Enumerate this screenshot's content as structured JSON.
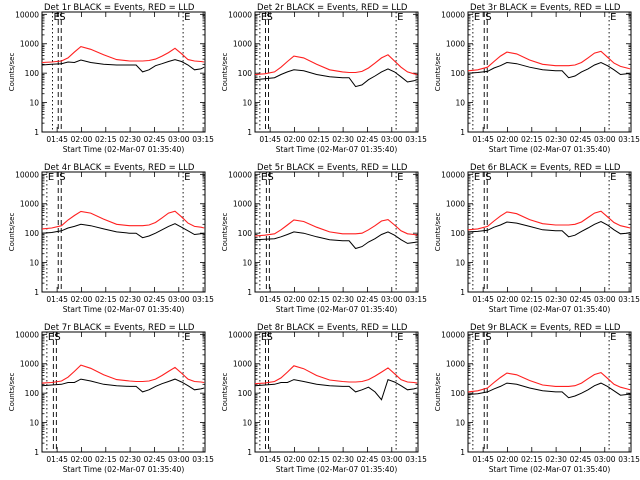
{
  "colors": {
    "events": "#000000",
    "lld": "#ff2020",
    "axis": "#000000",
    "background": "#ffffff"
  },
  "panels_common": {
    "xlabel": "Start Time (02-Mar-07 01:35:40)",
    "ylabel": "Counts/sec",
    "x_ticks": [
      "01:45",
      "02:00",
      "02:15",
      "02:30",
      "02:45",
      "03:00",
      "03:15"
    ],
    "x_tick_minutes": [
      9.33,
      24.33,
      39.33,
      54.33,
      69.33,
      84.33,
      99.33
    ],
    "xlim_minutes": [
      0,
      100.5
    ],
    "y_ticks": [
      "1",
      "10",
      "100",
      "1000",
      "10000"
    ],
    "ylim": [
      1,
      12000
    ],
    "scale": "log",
    "markers": [
      "E",
      "S",
      "E"
    ]
  },
  "chart_data": [
    {
      "type": "line",
      "title": "Det 1r  BLACK = Events, RED = LLD",
      "series": [
        {
          "name": "Events",
          "color": "#000000"
        },
        {
          "name": "LLD",
          "color": "#ff2020"
        }
      ],
      "x": [
        0,
        6,
        12,
        16,
        20,
        24,
        30,
        38,
        46,
        54,
        58,
        62,
        66,
        70,
        74,
        78,
        82,
        86,
        90,
        94,
        98,
        100
      ],
      "events": [
        190,
        200,
        210,
        240,
        230,
        280,
        230,
        200,
        190,
        190,
        190,
        110,
        130,
        180,
        210,
        250,
        290,
        250,
        190,
        130,
        140,
        160
      ],
      "lld": [
        230,
        240,
        260,
        330,
        520,
        800,
        650,
        420,
        290,
        260,
        260,
        260,
        270,
        300,
        380,
        500,
        700,
        460,
        290,
        260,
        250,
        240
      ],
      "markers_x": [
        6.5,
        10,
        87
      ]
    },
    {
      "type": "line",
      "title": "Det 2r  BLACK = Events, RED = LLD",
      "series": [
        {
          "name": "Events",
          "color": "#000000"
        },
        {
          "name": "LLD",
          "color": "#ff2020"
        }
      ],
      "x": [
        0,
        6,
        12,
        16,
        20,
        24,
        30,
        38,
        46,
        54,
        58,
        62,
        66,
        70,
        74,
        78,
        82,
        86,
        90,
        94,
        98,
        100
      ],
      "events": [
        60,
        65,
        70,
        90,
        110,
        130,
        120,
        90,
        75,
        70,
        70,
        35,
        40,
        60,
        80,
        110,
        140,
        110,
        75,
        50,
        55,
        60
      ],
      "lld": [
        90,
        95,
        110,
        160,
        250,
        380,
        330,
        200,
        130,
        110,
        105,
        105,
        115,
        150,
        220,
        330,
        420,
        260,
        160,
        110,
        95,
        90
      ],
      "markers_x": [
        3,
        6.5,
        87
      ]
    },
    {
      "type": "line",
      "title": "Det 3r  BLACK = Events, RED = LLD",
      "series": [
        {
          "name": "Events",
          "color": "#000000"
        },
        {
          "name": "LLD",
          "color": "#ff2020"
        }
      ],
      "x": [
        0,
        6,
        12,
        16,
        20,
        24,
        30,
        38,
        46,
        54,
        58,
        62,
        66,
        70,
        74,
        78,
        82,
        86,
        90,
        94,
        98,
        100
      ],
      "events": [
        100,
        105,
        115,
        150,
        180,
        230,
        210,
        160,
        130,
        120,
        120,
        70,
        80,
        110,
        140,
        190,
        230,
        180,
        130,
        90,
        95,
        100
      ],
      "lld": [
        120,
        130,
        160,
        250,
        380,
        520,
        450,
        280,
        200,
        180,
        180,
        180,
        190,
        230,
        330,
        480,
        550,
        350,
        220,
        170,
        150,
        140
      ],
      "markers_x": [
        3,
        10,
        87
      ]
    },
    {
      "type": "line",
      "title": "Det 4r  BLACK = Events, RED = LLD",
      "series": [
        {
          "name": "Events",
          "color": "#000000"
        },
        {
          "name": "LLD",
          "color": "#ff2020"
        }
      ],
      "x": [
        0,
        6,
        12,
        16,
        20,
        24,
        30,
        38,
        46,
        54,
        58,
        62,
        66,
        70,
        74,
        78,
        82,
        86,
        90,
        94,
        98,
        100
      ],
      "events": [
        100,
        105,
        120,
        150,
        170,
        200,
        180,
        140,
        110,
        100,
        100,
        70,
        80,
        100,
        130,
        170,
        210,
        160,
        120,
        90,
        95,
        100
      ],
      "lld": [
        140,
        150,
        180,
        280,
        400,
        550,
        480,
        300,
        200,
        180,
        180,
        180,
        190,
        230,
        330,
        480,
        560,
        360,
        220,
        170,
        160,
        150
      ],
      "markers_x": [
        3,
        10,
        87
      ]
    },
    {
      "type": "line",
      "title": "Det 5r  BLACK = Events, RED = LLD",
      "series": [
        {
          "name": "Events",
          "color": "#000000"
        },
        {
          "name": "LLD",
          "color": "#ff2020"
        }
      ],
      "x": [
        0,
        6,
        12,
        16,
        20,
        24,
        30,
        38,
        46,
        54,
        58,
        62,
        66,
        70,
        74,
        78,
        82,
        86,
        90,
        94,
        98,
        100
      ],
      "events": [
        60,
        62,
        65,
        75,
        90,
        110,
        100,
        75,
        60,
        55,
        55,
        30,
        35,
        50,
        65,
        90,
        110,
        85,
        60,
        45,
        48,
        50
      ],
      "lld": [
        80,
        85,
        95,
        130,
        190,
        280,
        250,
        160,
        110,
        95,
        95,
        95,
        100,
        130,
        180,
        260,
        290,
        190,
        120,
        95,
        90,
        85
      ],
      "markers_x": [
        3,
        7,
        87
      ]
    },
    {
      "type": "line",
      "title": "Det 6r  BLACK = Events, RED = LLD",
      "series": [
        {
          "name": "Events",
          "color": "#000000"
        },
        {
          "name": "LLD",
          "color": "#ff2020"
        }
      ],
      "x": [
        0,
        6,
        12,
        16,
        20,
        24,
        30,
        38,
        46,
        54,
        58,
        62,
        66,
        70,
        74,
        78,
        82,
        86,
        90,
        94,
        98,
        100
      ],
      "events": [
        110,
        115,
        125,
        160,
        190,
        240,
        220,
        170,
        130,
        120,
        120,
        75,
        85,
        115,
        150,
        200,
        250,
        190,
        130,
        95,
        100,
        105
      ],
      "lld": [
        130,
        140,
        170,
        260,
        380,
        530,
        460,
        290,
        210,
        190,
        190,
        190,
        200,
        240,
        340,
        480,
        560,
        360,
        230,
        180,
        160,
        150
      ],
      "markers_x": [
        3,
        10,
        87
      ]
    },
    {
      "type": "line",
      "title": "Det 7r  BLACK = Events, RED = LLD",
      "series": [
        {
          "name": "Events",
          "color": "#000000"
        },
        {
          "name": "LLD",
          "color": "#ff2020"
        }
      ],
      "x": [
        0,
        6,
        12,
        16,
        20,
        24,
        30,
        38,
        46,
        54,
        58,
        62,
        66,
        70,
        74,
        78,
        82,
        86,
        90,
        94,
        98,
        100
      ],
      "events": [
        180,
        190,
        200,
        230,
        230,
        300,
        260,
        200,
        180,
        170,
        170,
        110,
        130,
        170,
        210,
        250,
        300,
        240,
        180,
        130,
        140,
        150
      ],
      "lld": [
        220,
        230,
        260,
        350,
        550,
        900,
        700,
        420,
        290,
        260,
        250,
        250,
        260,
        300,
        400,
        550,
        750,
        480,
        300,
        250,
        240,
        230
      ],
      "markers_x": [
        3,
        7,
        87
      ]
    },
    {
      "type": "line",
      "title": "Det 8r  BLACK = Events, RED = LLD",
      "series": [
        {
          "name": "Events",
          "color": "#000000"
        },
        {
          "name": "LLD",
          "color": "#ff2020"
        }
      ],
      "x": [
        0,
        6,
        12,
        16,
        20,
        24,
        30,
        38,
        46,
        54,
        58,
        62,
        66,
        70,
        74,
        78,
        82,
        86,
        90,
        94,
        98,
        100
      ],
      "events": [
        180,
        190,
        200,
        230,
        230,
        290,
        250,
        200,
        180,
        170,
        170,
        110,
        130,
        160,
        110,
        60,
        290,
        240,
        180,
        130,
        140,
        150
      ],
      "lld": [
        210,
        220,
        250,
        330,
        520,
        850,
        680,
        400,
        280,
        250,
        240,
        240,
        250,
        290,
        380,
        520,
        720,
        460,
        290,
        240,
        230,
        220
      ],
      "markers_x": [
        3,
        6.5,
        87
      ]
    },
    {
      "type": "line",
      "title": "Det 9r  BLACK = Events, RED = LLD",
      "series": [
        {
          "name": "Events",
          "color": "#000000"
        },
        {
          "name": "LLD",
          "color": "#ff2020"
        }
      ],
      "x": [
        0,
        6,
        12,
        16,
        20,
        24,
        30,
        38,
        46,
        54,
        58,
        62,
        66,
        70,
        74,
        78,
        82,
        86,
        90,
        94,
        98,
        100
      ],
      "events": [
        90,
        95,
        110,
        140,
        170,
        220,
        200,
        150,
        120,
        110,
        110,
        70,
        80,
        100,
        130,
        180,
        220,
        170,
        120,
        85,
        90,
        95
      ],
      "lld": [
        110,
        120,
        150,
        230,
        340,
        480,
        420,
        270,
        190,
        170,
        170,
        170,
        180,
        220,
        310,
        430,
        500,
        320,
        200,
        160,
        140,
        130
      ],
      "markers_x": [
        3,
        10,
        87
      ]
    }
  ]
}
